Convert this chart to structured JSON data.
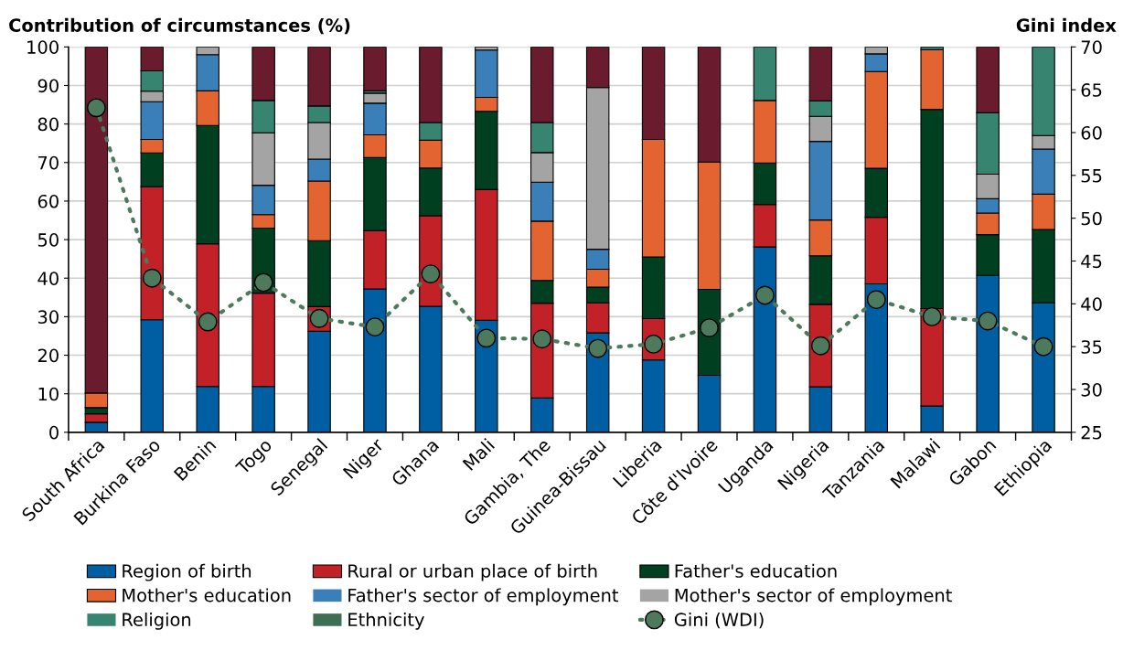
{
  "chart_data": {
    "type": "bar",
    "stacked": true,
    "ylabel": "Contribution of circumstances (%)",
    "y2label": "Gini index",
    "categories": [
      "South Africa",
      "Burkina Faso",
      "Benin",
      "Togo",
      "Senegal",
      "Niger",
      "Ghana",
      "Mali",
      "Gambia, The",
      "Guinea-Bissau",
      "Liberia",
      "Côte d'Ivoire",
      "Uganda",
      "Nigeria",
      "Tanzania",
      "Malawi",
      "Gabon",
      "Ethiopia"
    ],
    "ylim": [
      0,
      100
    ],
    "yticks": [
      0,
      10,
      20,
      30,
      40,
      50,
      60,
      70,
      80,
      90,
      100
    ],
    "y2lim": [
      25,
      70
    ],
    "y2ticks": [
      25,
      30,
      35,
      40,
      45,
      50,
      55,
      60,
      65,
      70
    ],
    "grid": "y",
    "legend": "bottom",
    "series": [
      {
        "name": "Region of birth",
        "color": "#005ea2",
        "values": [
          2.6,
          29.2,
          11.9,
          11.9,
          26.2,
          37.2,
          32.7,
          29.1,
          8.9,
          25.8,
          18.8,
          14.8,
          48.1,
          11.8,
          38.5,
          6.8,
          40.7,
          33.6
        ]
      },
      {
        "name": "Rural or urban place of birth",
        "color": "#c32128",
        "values": [
          2.2,
          34.5,
          37.0,
          24.2,
          6.4,
          15.1,
          23.5,
          33.9,
          24.6,
          7.8,
          10.7,
          0,
          11.0,
          21.4,
          17.3,
          25.3,
          0,
          0
        ]
      },
      {
        "name": "Father's education",
        "color": "#003f1f",
        "values": [
          1.6,
          8.8,
          30.7,
          16.9,
          17.1,
          19.0,
          12.4,
          20.3,
          5.9,
          4.1,
          16.0,
          22.3,
          10.8,
          12.6,
          12.7,
          51.7,
          10.6,
          19.0
        ]
      },
      {
        "name": "Mother's education",
        "color": "#e36431",
        "values": [
          3.8,
          3.5,
          9.0,
          3.5,
          15.5,
          5.9,
          7.2,
          3.6,
          15.4,
          4.6,
          30.5,
          33.0,
          16.2,
          9.3,
          25.1,
          15.5,
          5.6,
          9.2
        ]
      },
      {
        "name": "Father's sector of employment",
        "color": "#3a7fb7",
        "values": [
          0,
          9.8,
          9.4,
          7.6,
          5.7,
          8.2,
          0,
          12.3,
          10.1,
          5.2,
          0,
          0,
          0,
          20.4,
          4.6,
          0,
          3.7,
          11.7
        ]
      },
      {
        "name": "Mother's sector of employment",
        "color": "#a5a4a5",
        "values": [
          0,
          2.7,
          2.0,
          13.6,
          9.5,
          2.6,
          0,
          0.8,
          7.7,
          42.0,
          0,
          0,
          0,
          6.5,
          1.8,
          0,
          6.4,
          3.5
        ]
      },
      {
        "name": "Religion",
        "color": "#378470",
        "values": [
          0,
          5.3,
          0,
          8.4,
          4.3,
          0.6,
          4.6,
          0,
          7.8,
          0,
          0,
          0,
          13.9,
          4.0,
          0,
          0.7,
          15.9,
          23.0
        ]
      },
      {
        "name": "Ethnicity",
        "color": "#3e6f55",
        "values": [
          null,
          null,
          null,
          null,
          null,
          null,
          null,
          null,
          null,
          null,
          null,
          null,
          null,
          null,
          null,
          null,
          null,
          null
        ]
      },
      {
        "color": "#6a1b2e",
        "values": [
          89.8,
          6.2,
          0,
          13.9,
          15.3,
          11.4,
          19.6,
          0,
          19.6,
          10.5,
          24.0,
          29.9,
          0,
          14.0,
          0,
          0,
          17.1,
          0
        ]
      },
      {
        "name": "Gini (WDI)",
        "type": "line",
        "axis": "y2",
        "color": "#4d7a5c",
        "marker": "circle",
        "line_style": "dotted",
        "values": [
          62.9,
          43.0,
          37.9,
          42.5,
          38.3,
          37.3,
          43.5,
          36.0,
          35.9,
          34.8,
          35.3,
          37.2,
          41.0,
          35.1,
          40.5,
          38.5,
          38.0,
          35.0
        ]
      }
    ]
  }
}
